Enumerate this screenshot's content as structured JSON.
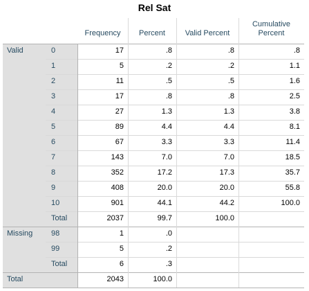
{
  "table": {
    "title": "Rel Sat",
    "headers": {
      "frequency": "Frequency",
      "percent": "Percent",
      "valid_percent": "Valid Percent",
      "cumulative_percent": "Cumulative Percent"
    },
    "groups": {
      "valid": "Valid",
      "missing": "Missing",
      "grand_total": "Total"
    },
    "valid_rows": [
      {
        "label": "0",
        "frequency": "17",
        "percent": ".8",
        "valid_percent": ".8",
        "cumulative_percent": ".8"
      },
      {
        "label": "1",
        "frequency": "5",
        "percent": ".2",
        "valid_percent": ".2",
        "cumulative_percent": "1.1"
      },
      {
        "label": "2",
        "frequency": "11",
        "percent": ".5",
        "valid_percent": ".5",
        "cumulative_percent": "1.6"
      },
      {
        "label": "3",
        "frequency": "17",
        "percent": ".8",
        "valid_percent": ".8",
        "cumulative_percent": "2.5"
      },
      {
        "label": "4",
        "frequency": "27",
        "percent": "1.3",
        "valid_percent": "1.3",
        "cumulative_percent": "3.8"
      },
      {
        "label": "5",
        "frequency": "89",
        "percent": "4.4",
        "valid_percent": "4.4",
        "cumulative_percent": "8.1"
      },
      {
        "label": "6",
        "frequency": "67",
        "percent": "3.3",
        "valid_percent": "3.3",
        "cumulative_percent": "11.4"
      },
      {
        "label": "7",
        "frequency": "143",
        "percent": "7.0",
        "valid_percent": "7.0",
        "cumulative_percent": "18.5"
      },
      {
        "label": "8",
        "frequency": "352",
        "percent": "17.2",
        "valid_percent": "17.3",
        "cumulative_percent": "35.7"
      },
      {
        "label": "9",
        "frequency": "408",
        "percent": "20.0",
        "valid_percent": "20.0",
        "cumulative_percent": "55.8"
      },
      {
        "label": "10",
        "frequency": "901",
        "percent": "44.1",
        "valid_percent": "44.2",
        "cumulative_percent": "100.0"
      },
      {
        "label": "Total",
        "frequency": "2037",
        "percent": "99.7",
        "valid_percent": "100.0",
        "cumulative_percent": ""
      }
    ],
    "missing_rows": [
      {
        "label": "98",
        "frequency": "1",
        "percent": ".0",
        "valid_percent": "",
        "cumulative_percent": ""
      },
      {
        "label": "99",
        "frequency": "5",
        "percent": ".2",
        "valid_percent": "",
        "cumulative_percent": ""
      },
      {
        "label": "Total",
        "frequency": "6",
        "percent": ".3",
        "valid_percent": "",
        "cumulative_percent": ""
      }
    ],
    "grand_total": {
      "frequency": "2043",
      "percent": "100.0",
      "valid_percent": "",
      "cumulative_percent": ""
    }
  }
}
